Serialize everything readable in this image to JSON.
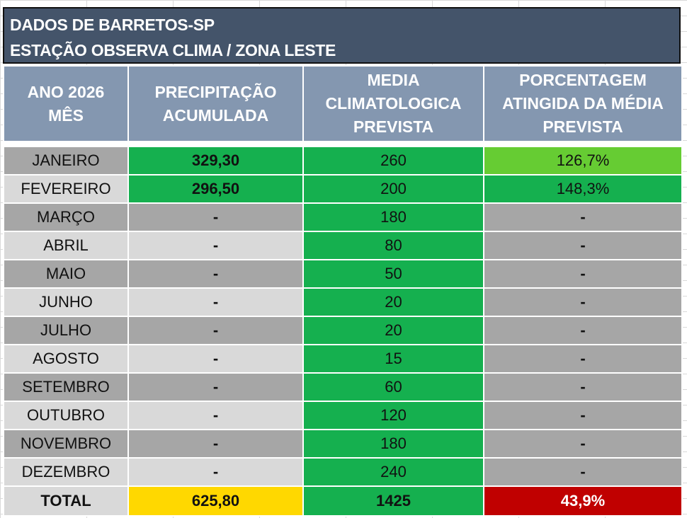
{
  "header": {
    "line1": "DADOS DE BARRETOS-SP",
    "line2": "ESTAÇÃO OBSERVA CLIMA / ZONA LESTE"
  },
  "columns": {
    "year_line1": "ANO 2026",
    "year_line2": "MÊS",
    "precip": "PRECIPITAÇÃO ACUMULADA",
    "media": "MEDIA CLIMATOLOGICA PREVISTA",
    "pct": "PORCENTAGEM ATINGIDA DA MÉDIA PREVISTA"
  },
  "rows": [
    {
      "month": "JANEIRO",
      "precip": "329,30",
      "media": "260",
      "pct": "126,7%"
    },
    {
      "month": "FEVEREIRO",
      "precip": "296,50",
      "media": "200",
      "pct": "148,3%"
    },
    {
      "month": "MARÇO",
      "precip": "-",
      "media": "180",
      "pct": "-"
    },
    {
      "month": "ABRIL",
      "precip": "-",
      "media": "80",
      "pct": "-"
    },
    {
      "month": "MAIO",
      "precip": "-",
      "media": "50",
      "pct": "-"
    },
    {
      "month": "JUNHO",
      "precip": "-",
      "media": "20",
      "pct": "-"
    },
    {
      "month": "JULHO",
      "precip": "-",
      "media": "20",
      "pct": "-"
    },
    {
      "month": "AGOSTO",
      "precip": "-",
      "media": "15",
      "pct": "-"
    },
    {
      "month": "SETEMBRO",
      "precip": "-",
      "media": "60",
      "pct": "-"
    },
    {
      "month": "OUTUBRO",
      "precip": "-",
      "media": "120",
      "pct": "-"
    },
    {
      "month": "NOVEMBRO",
      "precip": "-",
      "media": "180",
      "pct": "-"
    },
    {
      "month": "DEZEMBRO",
      "precip": "-",
      "media": "240",
      "pct": "-"
    }
  ],
  "total": {
    "label": "TOTAL",
    "precip": "625,80",
    "media": "1425",
    "pct": "43,9%"
  },
  "colors": {
    "header_bg": "#44546a",
    "column_header_bg": "#8497b0",
    "green": "#15b04f",
    "light_green": "#66cc33",
    "yellow": "#ffd800",
    "red": "#c00000",
    "gray_dark": "#a6a6a6",
    "gray_light": "#d9d9d9"
  }
}
